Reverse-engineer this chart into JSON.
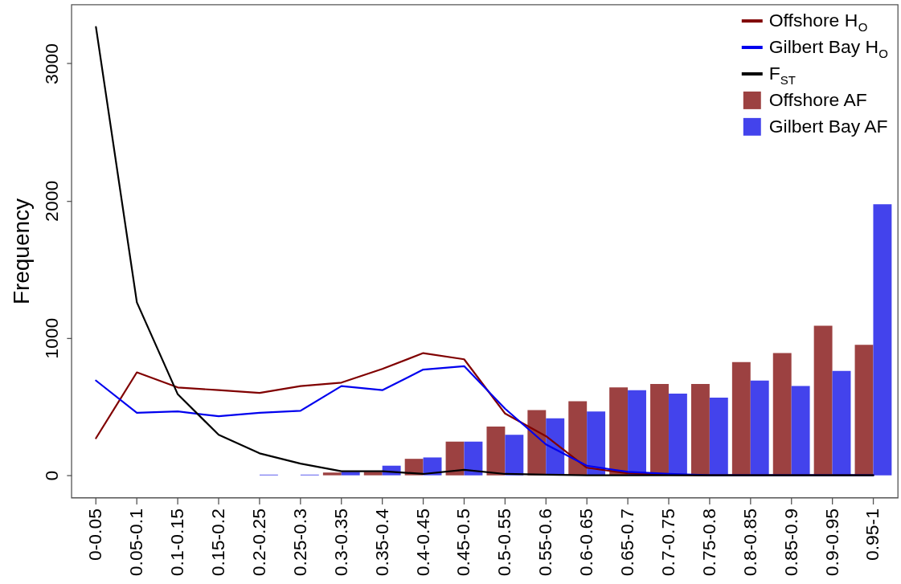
{
  "chart_data": {
    "type": "bar",
    "ylabel": "Frequency",
    "categories": [
      "0-0.05",
      "0.05-0.1",
      "0.1-0.15",
      "0.15-0.2",
      "0.2-0.25",
      "0.25-0.3",
      "0.3-0.35",
      "0.35-0.4",
      "0.4-0.45",
      "0.45-0.5",
      "0.5-0.55",
      "0.55-0.6",
      "0.6-0.65",
      "0.65-0.7",
      "0.7-0.75",
      "0.75-0.8",
      "0.8-0.85",
      "0.85-0.9",
      "0.9-0.95",
      "0.95-1"
    ],
    "series": [
      {
        "name": "Offshore H$_{O}$",
        "type": "line",
        "color": "#800000",
        "values": [
          270,
          750,
          640,
          620,
          600,
          650,
          675,
          775,
          890,
          845,
          450,
          285,
          55,
          15,
          5,
          0,
          0,
          0,
          0,
          0
        ]
      },
      {
        "name": "Gilbert Bay H$_{O}$",
        "type": "line",
        "color": "#0000ee",
        "values": [
          690,
          455,
          465,
          430,
          455,
          470,
          650,
          620,
          770,
          795,
          485,
          225,
          70,
          25,
          10,
          0,
          0,
          0,
          0,
          0
        ]
      },
      {
        "name": "F$_{ST}$",
        "type": "line",
        "color": "#000000",
        "values": [
          3265,
          1260,
          590,
          295,
          160,
          85,
          30,
          30,
          10,
          40,
          10,
          5,
          0,
          0,
          0,
          0,
          0,
          0,
          0,
          0
        ]
      },
      {
        "name": "Offshore AF",
        "color": "#9c4141",
        "values": [
          null,
          null,
          null,
          null,
          null,
          null,
          20,
          25,
          120,
          245,
          355,
          475,
          540,
          640,
          665,
          665,
          825,
          890,
          1090,
          950
        ]
      },
      {
        "name": "Gilbert Bay AF",
        "color": "#4343ec",
        "values": [
          null,
          null,
          null,
          null,
          5,
          5,
          25,
          70,
          130,
          245,
          295,
          415,
          465,
          620,
          595,
          565,
          690,
          650,
          760,
          1975
        ]
      }
    ],
    "ylim": [
      -163,
      3429
    ],
    "yticks": [
      0,
      1000,
      2000,
      3000
    ],
    "legend": "top right"
  }
}
